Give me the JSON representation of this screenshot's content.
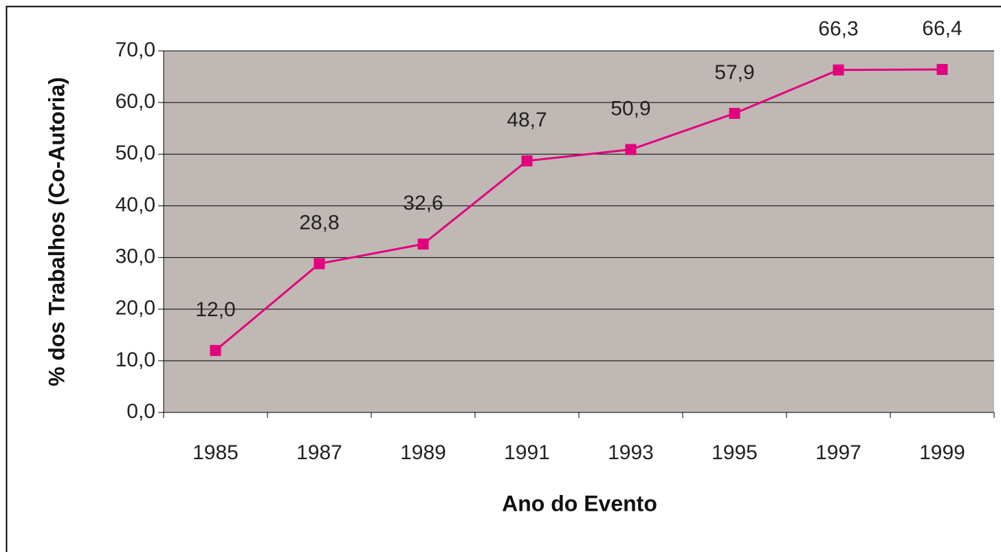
{
  "chart_data": {
    "type": "line",
    "x_label": "Ano do Evento",
    "y_label": "% dos Trabalhos (Co-Autoria)",
    "categories": [
      "1985",
      "1987",
      "1989",
      "1991",
      "1993",
      "1995",
      "1997",
      "1999"
    ],
    "series": [
      {
        "name": "Co-Autoria",
        "color": "#e2007e",
        "values": [
          12.0,
          28.8,
          32.6,
          48.7,
          50.9,
          57.9,
          66.3,
          66.4
        ],
        "value_labels": [
          "12,0",
          "28,8",
          "32,6",
          "48,7",
          "50,9",
          "57,9",
          "66,3",
          "66,4"
        ]
      }
    ],
    "ylim": [
      0,
      70
    ],
    "yticks": [
      {
        "value": 0,
        "label": "0,0"
      },
      {
        "value": 10,
        "label": "10,0"
      },
      {
        "value": 20,
        "label": "20,0"
      },
      {
        "value": 30,
        "label": "30,0"
      },
      {
        "value": 40,
        "label": "40,0"
      },
      {
        "value": 50,
        "label": "50,0"
      },
      {
        "value": 60,
        "label": "60,0"
      },
      {
        "value": 70,
        "label": "70,0"
      }
    ],
    "grid": true,
    "plot_background": "#c0b8b5"
  }
}
